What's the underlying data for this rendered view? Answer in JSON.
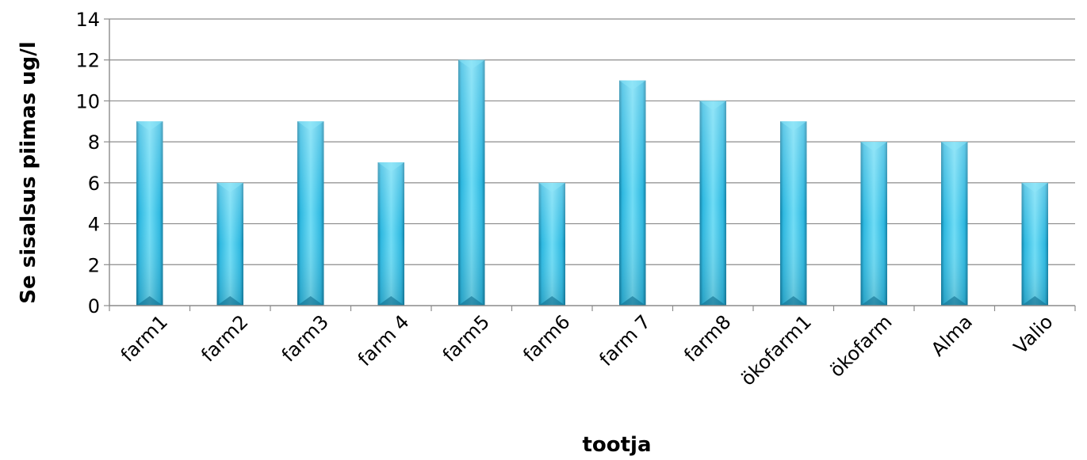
{
  "chart_data": {
    "type": "bar",
    "title": "",
    "xlabel": "tootja",
    "ylabel": "Se sisalsus piimas ug/l",
    "categories": [
      "farm1",
      "farm2",
      "farm3",
      "farm 4",
      "farm5",
      "farm6",
      "farm 7",
      "farm8",
      "ökofarm1",
      "ökofarm",
      "Alma",
      "Valio"
    ],
    "values": [
      9,
      6,
      9,
      7,
      12,
      6,
      11,
      10,
      9,
      8,
      8,
      6
    ],
    "ylim": [
      0,
      14
    ],
    "yticks": [
      0,
      2,
      4,
      6,
      8,
      10,
      12,
      14
    ],
    "grid": true,
    "legend": "none",
    "colors": {
      "bar_light": "#6fdcf5",
      "bar_mid": "#2eb8e0",
      "bar_dark": "#137fa3",
      "grid": "#8c8c8c",
      "axis": "#8c8c8c"
    }
  }
}
